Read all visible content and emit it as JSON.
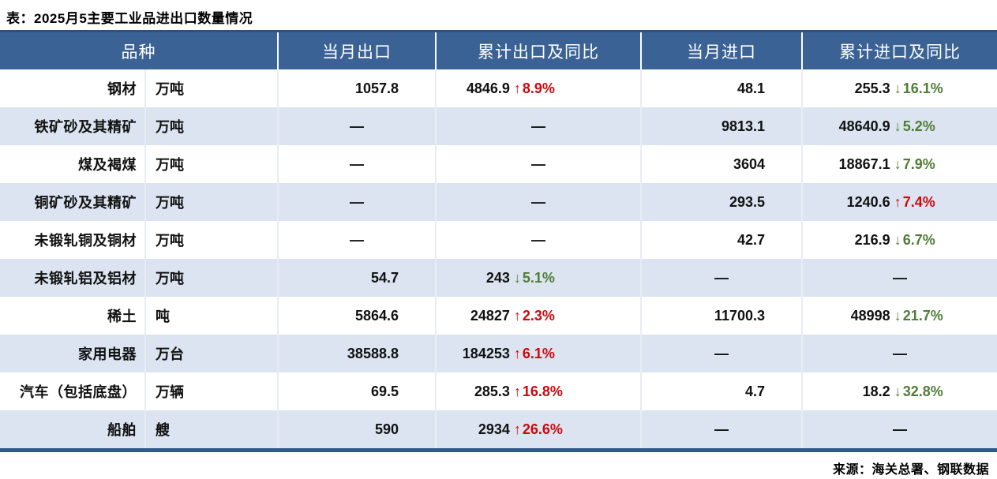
{
  "title": "表：2025月5主要工业品进出口数量情况",
  "source": "来源：海关总署、钢联数据",
  "icons": {
    "up_arrow": "↑",
    "down_arrow": "↓",
    "empty_dash": "—"
  },
  "colors": {
    "header_bg": "#3a6295",
    "stripe_bg": "#dbe4f0",
    "up_red": "#d0070d",
    "down_green": "#4e7d35",
    "bottom_border": "#31598a"
  },
  "table": {
    "headers": [
      "品种",
      "当月出口",
      "累计出口及同比",
      "当月进口",
      "累计进口及同比"
    ],
    "rows": [
      {
        "name": "钢材",
        "unit": "万吨",
        "month_export": "1057.8",
        "cum_export": {
          "value": "4846.9",
          "dir": "up",
          "pct": "8.9%"
        },
        "month_import": "48.1",
        "cum_import": {
          "value": "255.3",
          "dir": "down",
          "pct": "16.1%"
        }
      },
      {
        "name": "铁矿砂及其精矿",
        "unit": "万吨",
        "month_export": null,
        "cum_export": null,
        "month_import": "9813.1",
        "cum_import": {
          "value": "48640.9",
          "dir": "down",
          "pct": "5.2%"
        }
      },
      {
        "name": "煤及褐煤",
        "unit": "万吨",
        "month_export": null,
        "cum_export": null,
        "month_import": "3604",
        "cum_import": {
          "value": "18867.1",
          "dir": "down",
          "pct": "7.9%"
        }
      },
      {
        "name": "铜矿砂及其精矿",
        "unit": "万吨",
        "month_export": null,
        "cum_export": null,
        "month_import": "293.5",
        "cum_import": {
          "value": "1240.6",
          "dir": "up",
          "pct": "7.4%"
        }
      },
      {
        "name": "未锻轧铜及铜材",
        "unit": "万吨",
        "month_export": null,
        "cum_export": null,
        "month_import": "42.7",
        "cum_import": {
          "value": "216.9",
          "dir": "down",
          "pct": "6.7%"
        }
      },
      {
        "name": "未锻轧铝及铝材",
        "unit": "万吨",
        "month_export": "54.7",
        "cum_export": {
          "value": "243",
          "dir": "down",
          "pct": "5.1%"
        },
        "month_import": null,
        "cum_import": null
      },
      {
        "name": "稀土",
        "unit": "吨",
        "month_export": "5864.6",
        "cum_export": {
          "value": "24827",
          "dir": "up",
          "pct": "2.3%"
        },
        "month_import": "11700.3",
        "cum_import": {
          "value": "48998",
          "dir": "down",
          "pct": "21.7%"
        }
      },
      {
        "name": "家用电器",
        "unit": "万台",
        "month_export": "38588.8",
        "cum_export": {
          "value": "184253",
          "dir": "up",
          "pct": "6.1%"
        },
        "month_import": null,
        "cum_import": null
      },
      {
        "name": "汽车（包括底盘）",
        "unit": "万辆",
        "month_export": "69.5",
        "cum_export": {
          "value": "285.3",
          "dir": "up",
          "pct": "16.8%"
        },
        "month_import": "4.7",
        "cum_import": {
          "value": "18.2",
          "dir": "down",
          "pct": "32.8%"
        }
      },
      {
        "name": "船舶",
        "unit": "艘",
        "month_export": "590",
        "cum_export": {
          "value": "2934",
          "dir": "up",
          "pct": "26.6%"
        },
        "month_import": null,
        "cum_import": null
      }
    ]
  }
}
